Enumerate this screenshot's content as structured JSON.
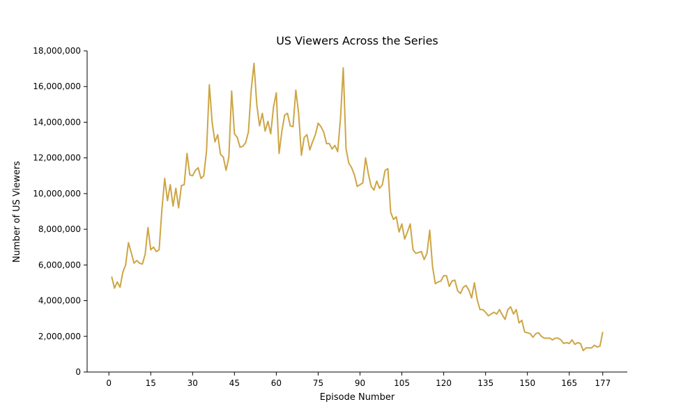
{
  "chart_data": {
    "type": "line",
    "title": "US Viewers Across the Series",
    "xlabel": "Episode Number",
    "ylabel": "Number of US Viewers",
    "xlim": [
      -7.8,
      185.8
    ],
    "ylim": [
      0,
      18000000
    ],
    "xticks": [
      0,
      15,
      30,
      45,
      60,
      75,
      90,
      105,
      120,
      135,
      150,
      165,
      177
    ],
    "yticks": [
      0,
      2000000,
      4000000,
      6000000,
      8000000,
      10000000,
      12000000,
      14000000,
      16000000,
      18000000
    ],
    "ytick_labels": [
      "0",
      "2,000,000",
      "4,000,000",
      "6,000,000",
      "8,000,000",
      "10,000,000",
      "12,000,000",
      "14,000,000",
      "16,000,000",
      "18,000,000"
    ],
    "grid": false,
    "line_color": "#CDA544",
    "series": [
      {
        "x": [
          1,
          2,
          3,
          4,
          5,
          6,
          7,
          8,
          9,
          10,
          11,
          12,
          13,
          14,
          15,
          16,
          17,
          18,
          19,
          20,
          21,
          22,
          23,
          24,
          25,
          26,
          27,
          28,
          29,
          30,
          31,
          32,
          33,
          34,
          35,
          36,
          37,
          38,
          39,
          40,
          41,
          42,
          43,
          44,
          45,
          46,
          47,
          48,
          49,
          50,
          51,
          52,
          53,
          54,
          55,
          56,
          57,
          58,
          59,
          60,
          61,
          62,
          63,
          64,
          65,
          66,
          67,
          68,
          69,
          70,
          71,
          72,
          73,
          74,
          75,
          76,
          77,
          78,
          79,
          80,
          81,
          82,
          83,
          84,
          85,
          86,
          87,
          88,
          89,
          90,
          91,
          92,
          93,
          94,
          95,
          96,
          97,
          98,
          99,
          100,
          101,
          102,
          103,
          104,
          105,
          106,
          107,
          108,
          109,
          110,
          111,
          112,
          113,
          114,
          115,
          116,
          117,
          118,
          119,
          120,
          121,
          122,
          123,
          124,
          125,
          126,
          127,
          128,
          129,
          130,
          131,
          132,
          133,
          134,
          135,
          136,
          137,
          138,
          139,
          140,
          141,
          142,
          143,
          144,
          145,
          146,
          147,
          148,
          149,
          150,
          151,
          152,
          153,
          154,
          155,
          156,
          157,
          158,
          159,
          160,
          161,
          162,
          163,
          164,
          165,
          166,
          167,
          168,
          169,
          170,
          171,
          172,
          173,
          174,
          175,
          176,
          177
        ],
        "values": [
          5350000,
          4700000,
          5050000,
          4750000,
          5600000,
          6000000,
          7250000,
          6700000,
          6100000,
          6250000,
          6100000,
          6050000,
          6600000,
          8100000,
          6850000,
          7000000,
          6750000,
          6850000,
          9100000,
          10850000,
          9600000,
          10500000,
          9300000,
          10300000,
          9200000,
          10450000,
          10500000,
          12250000,
          11050000,
          11000000,
          11300000,
          11450000,
          10850000,
          11000000,
          12400000,
          16100000,
          14000000,
          12900000,
          13300000,
          12200000,
          12050000,
          11300000,
          12050000,
          15750000,
          13350000,
          13150000,
          12600000,
          12650000,
          12850000,
          13450000,
          15800000,
          17300000,
          15000000,
          13800000,
          14500000,
          13500000,
          14050000,
          13350000,
          14850000,
          15650000,
          12250000,
          13500000,
          14400000,
          14500000,
          13800000,
          13750000,
          15800000,
          14500000,
          12150000,
          13150000,
          13300000,
          12450000,
          12900000,
          13300000,
          13950000,
          13750000,
          13450000,
          12800000,
          12800000,
          12500000,
          12700000,
          12350000,
          14200000,
          17050000,
          12500000,
          11700000,
          11450000,
          11050000,
          10400000,
          10500000,
          10600000,
          12000000,
          11100000,
          10400000,
          10200000,
          10700000,
          10300000,
          10500000,
          11300000,
          11400000,
          8950000,
          8550000,
          8700000,
          7850000,
          8300000,
          7450000,
          7850000,
          8300000,
          6850000,
          6650000,
          6700000,
          6750000,
          6300000,
          6650000,
          7950000,
          5900000,
          4950000,
          5050000,
          5100000,
          5400000,
          5400000,
          4800000,
          5100000,
          5150000,
          4550000,
          4400000,
          4750000,
          4850000,
          4600000,
          4150000,
          5000000,
          4050000,
          3500000,
          3500000,
          3350000,
          3150000,
          3250000,
          3350000,
          3250000,
          3500000,
          3200000,
          2950000,
          3500000,
          3650000,
          3250000,
          3500000,
          2750000,
          2900000,
          2250000,
          2200000,
          2150000,
          1950000,
          2150000,
          2200000,
          2000000,
          1900000,
          1900000,
          1900000,
          1800000,
          1900000,
          1900000,
          1800000,
          1600000,
          1650000,
          1600000,
          1800000,
          1550000,
          1650000,
          1600000,
          1200000,
          1350000,
          1350000,
          1350000,
          1500000,
          1400000,
          1450000,
          2250000
        ]
      }
    ]
  }
}
